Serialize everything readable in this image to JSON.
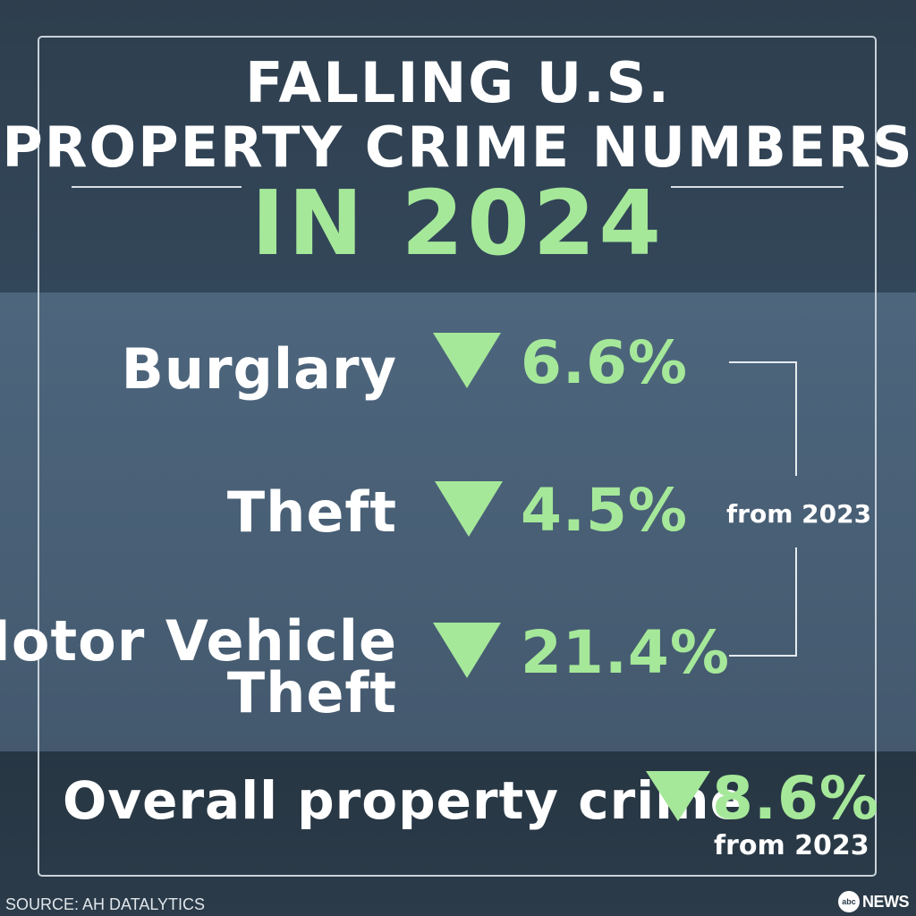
{
  "title": {
    "line1": "FALLING U.S.",
    "line2": "PROPERTY CRIME NUMBERS",
    "line3": "IN 2024"
  },
  "stats": [
    {
      "label": "Burglary",
      "change": "6.6%",
      "direction": "down"
    },
    {
      "label": "Theft",
      "change": "4.5%",
      "direction": "down"
    },
    {
      "label_line1": "Motor Vehicle",
      "label_line2": "Theft",
      "change": "21.4%",
      "direction": "down"
    }
  ],
  "bracket_label": "from 2023",
  "overall": {
    "label": "Overall property crime",
    "change": "8.6%",
    "direction": "down",
    "note": "from 2023"
  },
  "source": "SOURCE: AH DATALYTICS",
  "logo": {
    "disc": "abc",
    "text": "NEWS"
  },
  "colors": {
    "accent_green": "#a6e89a",
    "text": "#ffffff",
    "background_top": "#2e3e4d",
    "background_middle": "#4d667d",
    "background_bottom": "#273643"
  },
  "icons": {
    "decrease": "down-triangle-icon"
  }
}
